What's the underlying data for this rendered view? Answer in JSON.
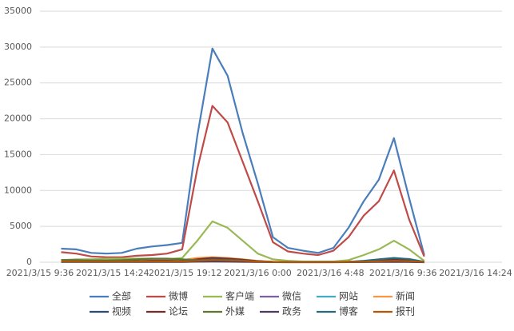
{
  "chart_data": {
    "type": "line",
    "x": [
      "2021/3/15 11:00",
      "2021/3/15 12:00",
      "2021/3/15 13:00",
      "2021/3/15 14:00",
      "2021/3/15 15:00",
      "2021/3/15 16:00",
      "2021/3/15 17:00",
      "2021/3/15 18:00",
      "2021/3/15 19:00",
      "2021/3/15 20:00",
      "2021/3/15 21:00",
      "2021/3/15 22:00",
      "2021/3/15 23:00",
      "2021/3/16 0:00",
      "2021/3/16 1:00",
      "2021/3/16 2:00",
      "2021/3/16 3:00",
      "2021/3/16 4:00",
      "2021/3/16 5:00",
      "2021/3/16 6:00",
      "2021/3/16 7:00",
      "2021/3/16 8:00",
      "2021/3/16 9:00",
      "2021/3/16 10:00",
      "2021/3/16 11:00"
    ],
    "series": [
      {
        "name": "全部",
        "color": "#4a7ebb",
        "values": [
          1900,
          1800,
          1300,
          1200,
          1300,
          1900,
          2200,
          2400,
          2700,
          17600,
          29800,
          26000,
          18000,
          11000,
          3500,
          2000,
          1600,
          1300,
          2000,
          4800,
          8500,
          11500,
          17300,
          9000,
          1000
        ]
      },
      {
        "name": "微博",
        "color": "#be4b48",
        "values": [
          1400,
          1200,
          800,
          700,
          700,
          900,
          1000,
          1200,
          1800,
          13000,
          21800,
          19500,
          14000,
          8500,
          2800,
          1500,
          1200,
          1000,
          1600,
          3500,
          6500,
          8500,
          12800,
          6000,
          800
        ]
      },
      {
        "name": "客户端",
        "color": "#98b954",
        "values": [
          300,
          400,
          400,
          500,
          500,
          500,
          500,
          400,
          600,
          3000,
          5700,
          4800,
          3000,
          1200,
          400,
          200,
          100,
          100,
          100,
          300,
          1000,
          1800,
          3000,
          1800,
          200
        ]
      },
      {
        "name": "微信",
        "color": "#7d60a0",
        "values": [
          300,
          300,
          250,
          250,
          250,
          300,
          350,
          300,
          200,
          400,
          500,
          400,
          300,
          100,
          50,
          20,
          20,
          20,
          20,
          40,
          100,
          200,
          300,
          200,
          30
        ]
      },
      {
        "name": "网站",
        "color": "#46aac5",
        "values": [
          50,
          50,
          50,
          50,
          50,
          50,
          50,
          50,
          50,
          100,
          200,
          150,
          100,
          50,
          20,
          10,
          10,
          10,
          10,
          20,
          50,
          80,
          100,
          60,
          10
        ]
      },
      {
        "name": "新闻",
        "color": "#f79646",
        "values": [
          200,
          200,
          150,
          150,
          150,
          200,
          250,
          250,
          300,
          600,
          700,
          600,
          400,
          200,
          80,
          40,
          30,
          30,
          40,
          80,
          150,
          250,
          400,
          300,
          50
        ]
      },
      {
        "name": "视频",
        "color": "#2c4d75",
        "values": [
          100,
          100,
          80,
          80,
          100,
          150,
          200,
          200,
          150,
          300,
          500,
          400,
          300,
          150,
          50,
          20,
          20,
          20,
          30,
          60,
          150,
          300,
          500,
          400,
          50
        ]
      },
      {
        "name": "论坛",
        "color": "#772c2a",
        "values": [
          150,
          150,
          100,
          100,
          100,
          150,
          200,
          200,
          150,
          400,
          600,
          500,
          350,
          150,
          60,
          30,
          20,
          20,
          30,
          60,
          100,
          200,
          300,
          250,
          40
        ]
      },
      {
        "name": "外媒",
        "color": "#5f7530",
        "values": [
          300,
          300,
          250,
          250,
          300,
          400,
          500,
          500,
          400,
          300,
          300,
          250,
          200,
          100,
          40,
          20,
          20,
          20,
          20,
          40,
          60,
          100,
          150,
          100,
          20
        ]
      },
      {
        "name": "政务",
        "color": "#4d3b62",
        "values": [
          50,
          50,
          40,
          40,
          40,
          50,
          60,
          60,
          50,
          80,
          100,
          80,
          60,
          30,
          10,
          5,
          5,
          5,
          5,
          10,
          20,
          30,
          40,
          30,
          5
        ]
      },
      {
        "name": "博客",
        "color": "#276a7c",
        "values": [
          80,
          80,
          60,
          60,
          80,
          120,
          150,
          150,
          120,
          250,
          400,
          350,
          250,
          120,
          40,
          20,
          20,
          20,
          30,
          60,
          200,
          400,
          600,
          450,
          60
        ]
      },
      {
        "name": "报刊",
        "color": "#b65708",
        "values": [
          100,
          100,
          80,
          80,
          80,
          100,
          120,
          120,
          100,
          200,
          300,
          250,
          200,
          100,
          40,
          20,
          20,
          20,
          20,
          40,
          80,
          120,
          200,
          150,
          30
        ]
      }
    ],
    "xlim": [
      "2021/3/15 9:36",
      "2021/3/16 14:24"
    ],
    "xticks": [
      "2021/3/15 9:36",
      "2021/3/15 14:24",
      "2021/3/15 19:12",
      "2021/3/16 0:00",
      "2021/3/16 4:48",
      "2021/3/16 9:36",
      "2021/3/16 14:24"
    ],
    "ylim": [
      0,
      35000
    ],
    "yticks": [
      0,
      5000,
      10000,
      15000,
      20000,
      25000,
      30000,
      35000
    ],
    "grid": true
  }
}
